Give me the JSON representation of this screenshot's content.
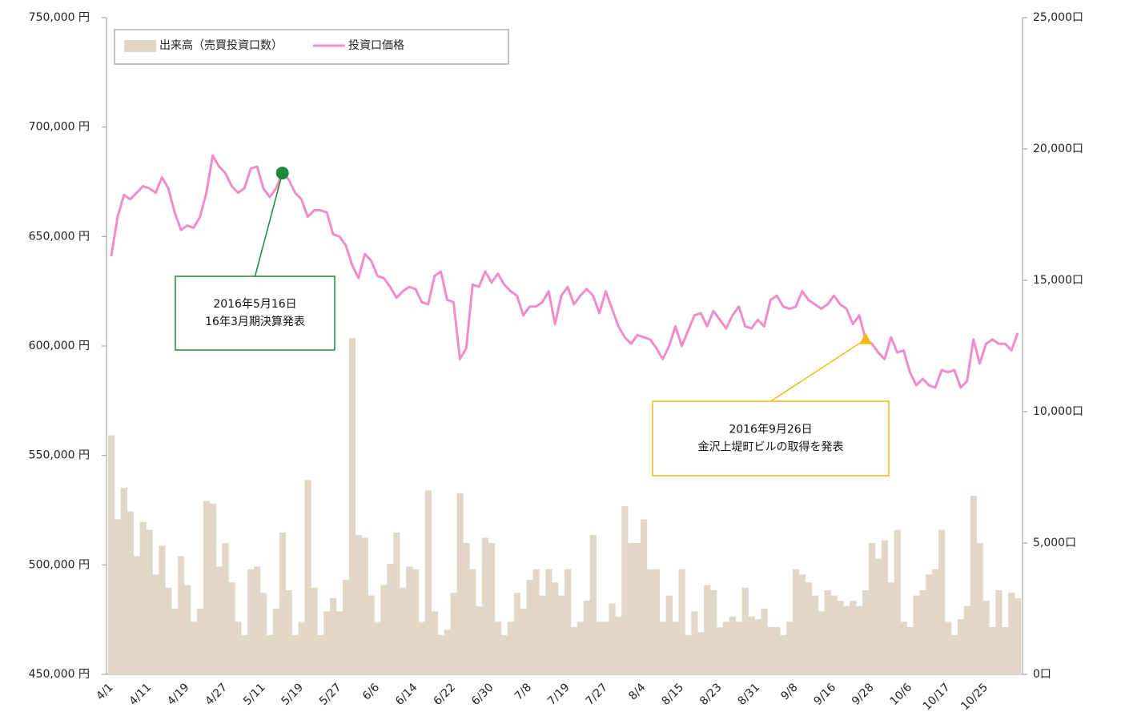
{
  "chart_data": {
    "type": "bar-line",
    "categories": [
      "4/1",
      null,
      null,
      null,
      null,
      null,
      "4/11",
      null,
      null,
      null,
      null,
      null,
      "4/19",
      null,
      null,
      null,
      null,
      null,
      "4/27",
      null,
      null,
      null,
      null,
      null,
      "5/11",
      null,
      null,
      null,
      null,
      null,
      "5/19",
      null,
      null,
      null,
      null,
      null,
      "5/27",
      null,
      null,
      null,
      null,
      null,
      "6/6",
      null,
      null,
      null,
      null,
      null,
      "6/14",
      null,
      null,
      null,
      null,
      null,
      "6/22",
      null,
      null,
      null,
      null,
      null,
      "6/30",
      null,
      null,
      null,
      null,
      null,
      "7/8",
      null,
      null,
      null,
      null,
      null,
      "7/19",
      null,
      null,
      null,
      null,
      null,
      "7/27",
      null,
      null,
      null,
      null,
      null,
      "8/4",
      null,
      null,
      null,
      null,
      null,
      "8/15",
      null,
      null,
      null,
      null,
      null,
      "8/23",
      null,
      null,
      null,
      null,
      null,
      "8/31",
      null,
      null,
      null,
      null,
      null,
      "9/8",
      null,
      null,
      null,
      null,
      null,
      "9/16",
      null,
      null,
      null,
      null,
      null,
      "9/28",
      null,
      null,
      null,
      null,
      null,
      "10/6",
      null,
      null,
      null,
      null,
      null,
      "10/17",
      null,
      null,
      null,
      null,
      null,
      "10/25",
      null,
      null,
      null,
      null,
      null
    ],
    "series": [
      {
        "name": "出来高（売買投資口数）",
        "color": "#e2d6c6",
        "kind": "bar",
        "axis": "y2",
        "values": [
          9100,
          5900,
          7100,
          6200,
          4500,
          5800,
          5500,
          3800,
          4900,
          3300,
          2500,
          4500,
          3400,
          2000,
          2500,
          6600,
          6500,
          4100,
          5000,
          3500,
          2000,
          1500,
          4000,
          4100,
          3100,
          1500,
          2500,
          5400,
          3200,
          1500,
          2000,
          7400,
          3300,
          1500,
          2400,
          2900,
          2400,
          3600,
          12800,
          5300,
          5200,
          3000,
          2000,
          3400,
          4200,
          5400,
          3300,
          4100,
          4000,
          2000,
          7000,
          2400,
          1500,
          1700,
          3100,
          6900,
          5000,
          4000,
          2600,
          5200,
          5000,
          2000,
          1500,
          2000,
          3100,
          2500,
          3600,
          4000,
          3000,
          4000,
          3500,
          3000,
          4000,
          1800,
          2000,
          2800,
          5300,
          2000,
          2000,
          2700,
          2200,
          6400,
          5000,
          5000,
          5900,
          4000,
          4000,
          2000,
          3000,
          2000,
          4000,
          1500,
          2400,
          1600,
          3400,
          3200,
          1800,
          2000,
          2200,
          2000,
          3300,
          2200,
          2100,
          2500,
          1800,
          1800,
          1500,
          2000,
          4000,
          3800,
          3500,
          3000,
          2400,
          3200,
          3000,
          2800,
          2600,
          2800,
          2600,
          3200,
          5000,
          4400,
          5100,
          3500,
          5500,
          2000,
          1800,
          3000,
          3200,
          3800,
          4000,
          5500,
          2000,
          1500,
          2100,
          2600,
          6800,
          5000,
          2800,
          1800,
          3200,
          1800,
          3100,
          2900
        ]
      },
      {
        "name": "投資口価格",
        "color": "#f08cc8",
        "kind": "line",
        "values": [
          641000,
          659000,
          669000,
          667000,
          670000,
          673000,
          672000,
          670000,
          677000,
          672000,
          661000,
          653000,
          655000,
          654000,
          659000,
          670000,
          687000,
          682000,
          679000,
          673000,
          670000,
          672000,
          681000,
          682000,
          672000,
          668000,
          672000,
          679000,
          676000,
          670000,
          667000,
          659000,
          662000,
          662000,
          661000,
          651000,
          650000,
          646000,
          637000,
          631000,
          642000,
          639000,
          632000,
          631000,
          627000,
          622000,
          625000,
          627000,
          626000,
          620000,
          619000,
          632000,
          634000,
          621000,
          620000,
          594000,
          599000,
          628000,
          627000,
          634000,
          629000,
          633000,
          628000,
          625000,
          623000,
          614000,
          618000,
          618000,
          620000,
          625000,
          610000,
          623000,
          627000,
          619000,
          623000,
          626000,
          623000,
          615000,
          625000,
          617000,
          609000,
          604000,
          601000,
          605000,
          604000,
          603000,
          599000,
          594000,
          600000,
          609000,
          600000,
          607000,
          614000,
          615000,
          609000,
          616000,
          612000,
          608000,
          614000,
          618000,
          609000,
          608000,
          612000,
          609000,
          621000,
          623000,
          618000,
          617000,
          618000,
          625000,
          621000,
          619000,
          617000,
          619000,
          623000,
          619000,
          617000,
          610000,
          614000,
          603000,
          601000,
          597000,
          594000,
          604000,
          597000,
          598000,
          588000,
          582000,
          585000,
          582000,
          581000,
          589000,
          588000,
          589000,
          581000,
          584000,
          603000,
          592000,
          601000,
          603000,
          601000,
          601000,
          598000,
          606000
        ]
      }
    ],
    "ylim": [
      450000,
      750000
    ],
    "yticks": [
      {
        "value": 450000,
        "label": "450,000 円"
      },
      {
        "value": 500000,
        "label": "500,000 円"
      },
      {
        "value": 550000,
        "label": "550,000 円"
      },
      {
        "value": 600000,
        "label": "600,000 円"
      },
      {
        "value": 650000,
        "label": "650,000 円"
      },
      {
        "value": 700000,
        "label": "700,000 円"
      },
      {
        "value": 750000,
        "label": "750,000 円"
      }
    ],
    "y2lim": [
      0,
      25000
    ],
    "y2ticks": [
      {
        "value": 0,
        "label": "0口"
      },
      {
        "value": 5000,
        "label": "5,000口"
      },
      {
        "value": 10000,
        "label": "10,000口"
      },
      {
        "value": 15000,
        "label": "15,000口"
      },
      {
        "value": 20000,
        "label": "20,000口"
      },
      {
        "value": 25000,
        "label": "25,000口"
      }
    ],
    "legend": "top-left",
    "annotations": [
      {
        "lines": [
          "2016年5月16日",
          "16年3月期決算発表"
        ],
        "point": 27,
        "color": "#1e8a3c",
        "marker": "circle"
      },
      {
        "lines": [
          "2016年9月26日",
          "金沢上堤町ビルの取得を発表"
        ],
        "point": 119,
        "color": "#f5b915",
        "marker": "triangle"
      }
    ]
  }
}
